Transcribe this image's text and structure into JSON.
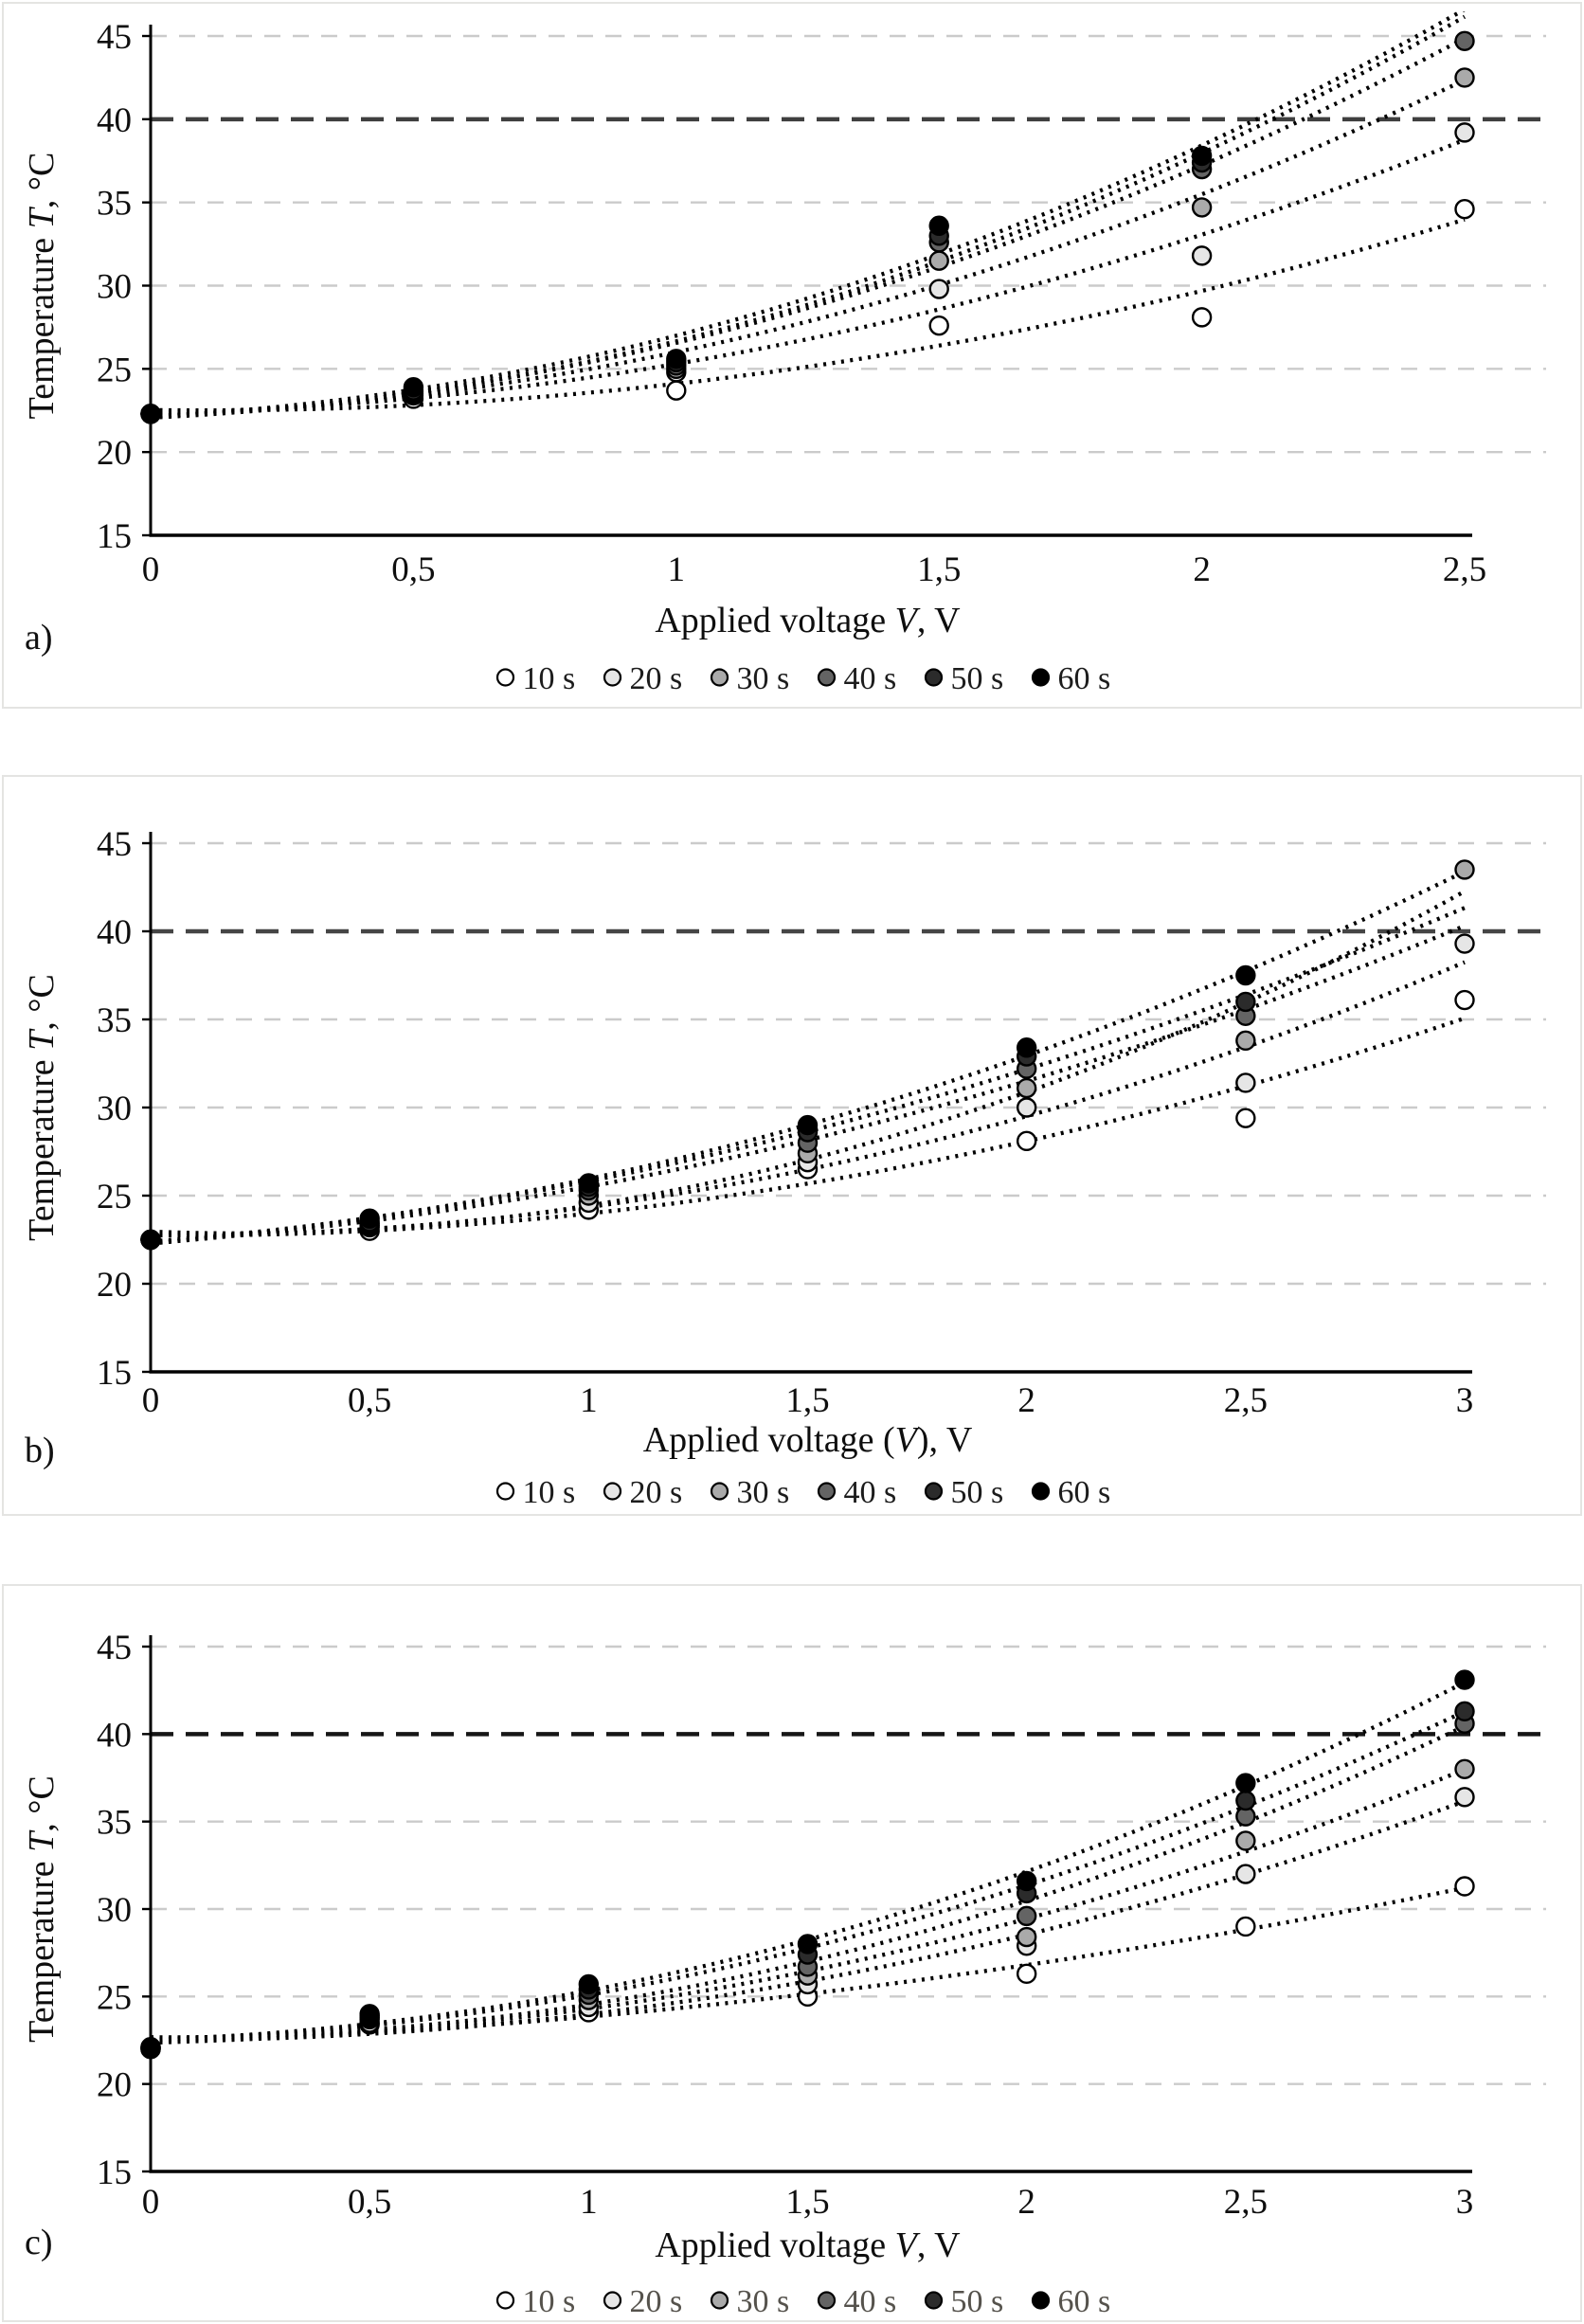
{
  "figure": {
    "description_visible_text_only": true
  },
  "panels": [
    {
      "label": "a)"
    },
    {
      "label": "b)"
    },
    {
      "label": "c)"
    }
  ],
  "chart_data": [
    {
      "type": "scatter",
      "panel": "a",
      "xlabel_parts": [
        {
          "text": "Applied voltage ",
          "italic": false
        },
        {
          "text": "V",
          "italic": true
        },
        {
          "text": ", V",
          "italic": false
        }
      ],
      "ylabel_parts": [
        {
          "text": "Temperature ",
          "italic": false
        },
        {
          "text": "T",
          "italic": true
        },
        {
          "text": ", °C",
          "italic": false
        }
      ],
      "x_tick_labels": [
        "0",
        "0,5",
        "1",
        "1,5",
        "2",
        "2,5"
      ],
      "x_values": [
        0,
        0.5,
        1,
        1.5,
        2,
        2.5
      ],
      "xlim": [
        0,
        2.5
      ],
      "ylim": [
        15,
        45
      ],
      "y_ticks": [
        15,
        20,
        25,
        30,
        35,
        40,
        45
      ],
      "grid": "horizontal-dashed",
      "limit_line_y": 40,
      "limit_color": "#3f3f3f",
      "legend_position": "bottom",
      "legend_text_color": "#1c1c1c",
      "series": [
        {
          "name": "10 s",
          "color": "#ffffff",
          "values": [
            22.3,
            23.2,
            23.7,
            27.6,
            28.1,
            34.6
          ]
        },
        {
          "name": "20 s",
          "color": "#e6e6e6",
          "values": [
            22.3,
            23.4,
            24.8,
            29.8,
            31.8,
            39.2
          ]
        },
        {
          "name": "30 s",
          "color": "#aaaaaa",
          "values": [
            22.3,
            23.5,
            25.0,
            31.5,
            34.7,
            42.5
          ]
        },
        {
          "name": "40 s",
          "color": "#646464",
          "values": [
            22.3,
            23.6,
            25.2,
            32.6,
            37.0,
            44.7
          ]
        },
        {
          "name": "50 s",
          "color": "#2b2b2b",
          "values": [
            22.3,
            23.7,
            25.4,
            33.0,
            37.4,
            null
          ]
        },
        {
          "name": "60 s",
          "color": "#000000",
          "values": [
            22.3,
            23.9,
            25.6,
            33.6,
            37.8,
            null
          ]
        }
      ]
    },
    {
      "type": "scatter",
      "panel": "b",
      "xlabel_parts": [
        {
          "text": "Applied voltage (",
          "italic": false
        },
        {
          "text": "V",
          "italic": true
        },
        {
          "text": "), V",
          "italic": false
        }
      ],
      "ylabel_parts": [
        {
          "text": "Temperature ",
          "italic": false
        },
        {
          "text": "T",
          "italic": true
        },
        {
          "text": ", °C",
          "italic": false
        }
      ],
      "x_tick_labels": [
        "0",
        "0,5",
        "1",
        "1,5",
        "2",
        "2,5",
        "3"
      ],
      "x_values": [
        0,
        0.5,
        1,
        1.5,
        2,
        2.5,
        3
      ],
      "xlim": [
        0,
        3
      ],
      "ylim": [
        15,
        45
      ],
      "y_ticks": [
        15,
        20,
        25,
        30,
        35,
        40,
        45
      ],
      "grid": "horizontal-dashed",
      "limit_line_y": 40,
      "limit_color": "#454545",
      "legend_position": "bottom",
      "legend_text_color": "#1c1c1c",
      "series": [
        {
          "name": "10 s",
          "color": "#ffffff",
          "values": [
            22.5,
            23.0,
            24.2,
            26.5,
            28.1,
            29.4,
            36.1
          ]
        },
        {
          "name": "20 s",
          "color": "#e6e6e6",
          "values": [
            22.5,
            23.2,
            24.6,
            26.9,
            30.0,
            31.4,
            39.3
          ]
        },
        {
          "name": "30 s",
          "color": "#aaaaaa",
          "values": [
            22.5,
            23.3,
            25.0,
            27.4,
            31.1,
            33.8,
            43.5
          ]
        },
        {
          "name": "40 s",
          "color": "#646464",
          "values": [
            22.5,
            23.4,
            25.3,
            28.0,
            32.2,
            35.2,
            null
          ]
        },
        {
          "name": "50 s",
          "color": "#2b2b2b",
          "values": [
            22.5,
            23.5,
            25.5,
            28.6,
            32.9,
            36.0,
            null
          ]
        },
        {
          "name": "60 s",
          "color": "#000000",
          "values": [
            22.5,
            23.7,
            25.7,
            29.0,
            33.4,
            37.5,
            null
          ]
        }
      ]
    },
    {
      "type": "scatter",
      "panel": "c",
      "xlabel_parts": [
        {
          "text": "Applied voltage ",
          "italic": false
        },
        {
          "text": "V",
          "italic": true
        },
        {
          "text": ", V",
          "italic": false
        }
      ],
      "ylabel_parts": [
        {
          "text": "Temperature ",
          "italic": false
        },
        {
          "text": "T",
          "italic": true
        },
        {
          "text": ", °C",
          "italic": false
        }
      ],
      "x_tick_labels": [
        "0",
        "0,5",
        "1",
        "1,5",
        "2",
        "2,5",
        "3"
      ],
      "x_values": [
        0,
        0.5,
        1,
        1.5,
        2,
        2.5,
        3
      ],
      "xlim": [
        0,
        3
      ],
      "ylim": [
        15,
        45
      ],
      "y_ticks": [
        15,
        20,
        25,
        30,
        35,
        40,
        45
      ],
      "grid": "horizontal-dashed",
      "limit_line_y": 40,
      "limit_color": "#161616",
      "legend_position": "bottom",
      "legend_text_color": "#55524c",
      "series": [
        {
          "name": "10 s",
          "color": "#ffffff",
          "values": [
            22.0,
            23.4,
            24.1,
            25.0,
            26.3,
            29.0,
            31.3
          ]
        },
        {
          "name": "20 s",
          "color": "#e6e6e6",
          "values": [
            22.0,
            23.5,
            24.4,
            25.7,
            27.9,
            32.0,
            36.4
          ]
        },
        {
          "name": "30 s",
          "color": "#aaaaaa",
          "values": [
            22.0,
            23.7,
            24.8,
            26.2,
            28.4,
            33.9,
            38.0
          ]
        },
        {
          "name": "40 s",
          "color": "#646464",
          "values": [
            22.1,
            23.8,
            25.1,
            26.7,
            29.6,
            35.3,
            40.6
          ]
        },
        {
          "name": "50 s",
          "color": "#2b2b2b",
          "values": [
            22.1,
            23.9,
            25.4,
            27.4,
            30.9,
            36.2,
            41.3
          ]
        },
        {
          "name": "60 s",
          "color": "#000000",
          "values": [
            22.1,
            24.0,
            25.7,
            28.0,
            31.6,
            37.2,
            43.1
          ]
        }
      ]
    }
  ]
}
